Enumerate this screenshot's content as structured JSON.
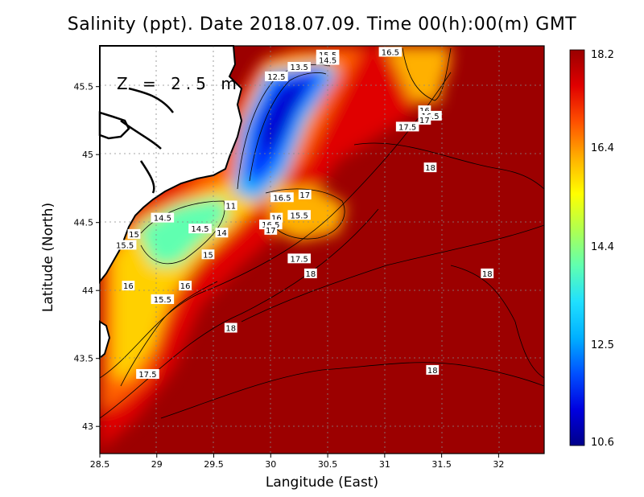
{
  "title": "Salinity (ppt). Date 2018.07.09. Time 00(h):00(m) GMT",
  "depth_label": "Z = 2.5 m",
  "chart_data": {
    "type": "heatmap",
    "xlabel": "Langitude (East)",
    "ylabel": "Latitude (North)",
    "xlim": [
      28.5,
      32.4
    ],
    "ylim": [
      42.8,
      45.8
    ],
    "x_ticks": [
      "28.5",
      "29",
      "29.5",
      "30",
      "30.5",
      "31",
      "31.5",
      "32"
    ],
    "y_ticks": [
      "43",
      "43.5",
      "44",
      "44.5",
      "45",
      "45.5"
    ],
    "grid": true,
    "colorbar": {
      "min": 10.6,
      "max": 18.2,
      "ticks": [
        "18.2",
        "16.4",
        "14.4",
        "12.5",
        "10.6"
      ],
      "colors": [
        "#00008a",
        "#0000e0",
        "#0050ff",
        "#00b0ff",
        "#20e0ff",
        "#60ffb0",
        "#b0ff50",
        "#ffff00",
        "#ffb000",
        "#ff5000",
        "#e00000",
        "#9a0000"
      ]
    },
    "contour_labels": [
      {
        "text": "16.5",
        "lon": 31.05,
        "lat": 45.75
      },
      {
        "text": "15.5",
        "lon": 30.5,
        "lat": 45.73
      },
      {
        "text": "14.5",
        "lon": 30.5,
        "lat": 45.69
      },
      {
        "text": "13.5",
        "lon": 30.25,
        "lat": 45.64
      },
      {
        "text": "12.5",
        "lon": 30.05,
        "lat": 45.57
      },
      {
        "text": "16",
        "lon": 31.35,
        "lat": 45.32
      },
      {
        "text": "16.5",
        "lon": 31.4,
        "lat": 45.28
      },
      {
        "text": "17",
        "lon": 31.35,
        "lat": 45.25
      },
      {
        "text": "17.5",
        "lon": 31.2,
        "lat": 45.2
      },
      {
        "text": "18",
        "lon": 31.4,
        "lat": 44.9
      },
      {
        "text": "16.5",
        "lon": 30.1,
        "lat": 44.68
      },
      {
        "text": "17",
        "lon": 30.3,
        "lat": 44.7
      },
      {
        "text": "15.5",
        "lon": 30.25,
        "lat": 44.55
      },
      {
        "text": "16",
        "lon": 30.05,
        "lat": 44.53
      },
      {
        "text": "16.5",
        "lon": 30.0,
        "lat": 44.48
      },
      {
        "text": "17",
        "lon": 30.0,
        "lat": 44.44
      },
      {
        "text": "11",
        "lon": 29.65,
        "lat": 44.62
      },
      {
        "text": "14.5",
        "lon": 29.05,
        "lat": 44.53
      },
      {
        "text": "14.5",
        "lon": 29.38,
        "lat": 44.45
      },
      {
        "text": "14",
        "lon": 29.57,
        "lat": 44.42
      },
      {
        "text": "15",
        "lon": 28.8,
        "lat": 44.41
      },
      {
        "text": "15.5",
        "lon": 28.72,
        "lat": 44.33
      },
      {
        "text": "15",
        "lon": 29.45,
        "lat": 44.26
      },
      {
        "text": "17.5",
        "lon": 30.25,
        "lat": 44.23
      },
      {
        "text": "18",
        "lon": 30.35,
        "lat": 44.12
      },
      {
        "text": "18",
        "lon": 31.9,
        "lat": 44.12
      },
      {
        "text": "16",
        "lon": 28.75,
        "lat": 44.03
      },
      {
        "text": "16",
        "lon": 29.25,
        "lat": 44.03
      },
      {
        "text": "15.5",
        "lon": 29.05,
        "lat": 43.93
      },
      {
        "text": "18",
        "lon": 29.65,
        "lat": 43.72
      },
      {
        "text": "18",
        "lon": 31.42,
        "lat": 43.41
      },
      {
        "text": "17.5",
        "lon": 28.92,
        "lat": 43.38
      }
    ]
  }
}
